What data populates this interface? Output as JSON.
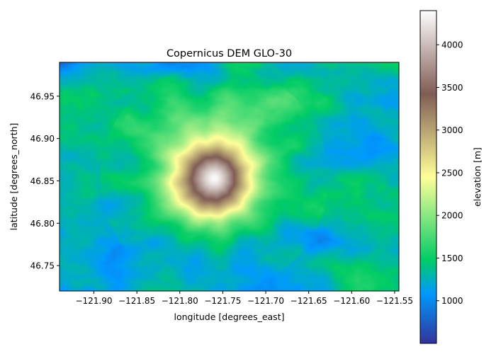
{
  "chart_data": {
    "type": "heatmap",
    "title": "Copernicus DEM GLO-30",
    "xlabel": "longitude [degrees_east]",
    "ylabel": "latitude [degrees_north]",
    "xlim": [
      -121.94,
      -121.545
    ],
    "ylim": [
      46.72,
      46.99
    ],
    "x_ticks": [
      {
        "value": -121.9,
        "label": "−121.90"
      },
      {
        "value": -121.85,
        "label": "−121.85"
      },
      {
        "value": -121.8,
        "label": "−121.80"
      },
      {
        "value": -121.75,
        "label": "−121.75"
      },
      {
        "value": -121.7,
        "label": "−121.70"
      },
      {
        "value": -121.65,
        "label": "−121.65"
      },
      {
        "value": -121.6,
        "label": "−121.60"
      },
      {
        "value": -121.55,
        "label": "−121.55"
      }
    ],
    "y_ticks": [
      {
        "value": 46.75,
        "label": "46.75"
      },
      {
        "value": 46.8,
        "label": "46.80"
      },
      {
        "value": 46.85,
        "label": "46.85"
      },
      {
        "value": 46.9,
        "label": "46.90"
      },
      {
        "value": 46.95,
        "label": "46.95"
      }
    ],
    "colorbar": {
      "label": "elevation [m]",
      "range": [
        500,
        4400
      ],
      "colormap": "terrain",
      "ticks": [
        {
          "value": 1000,
          "label": "1000"
        },
        {
          "value": 1500,
          "label": "1500"
        },
        {
          "value": 2000,
          "label": "2000"
        },
        {
          "value": 2500,
          "label": "2500"
        },
        {
          "value": 3000,
          "label": "3000"
        },
        {
          "value": 3500,
          "label": "3500"
        },
        {
          "value": 4000,
          "label": "4000"
        }
      ]
    },
    "peak": {
      "lon": -121.76,
      "lat": 46.853,
      "elevation": 4390
    },
    "grid": false
  }
}
